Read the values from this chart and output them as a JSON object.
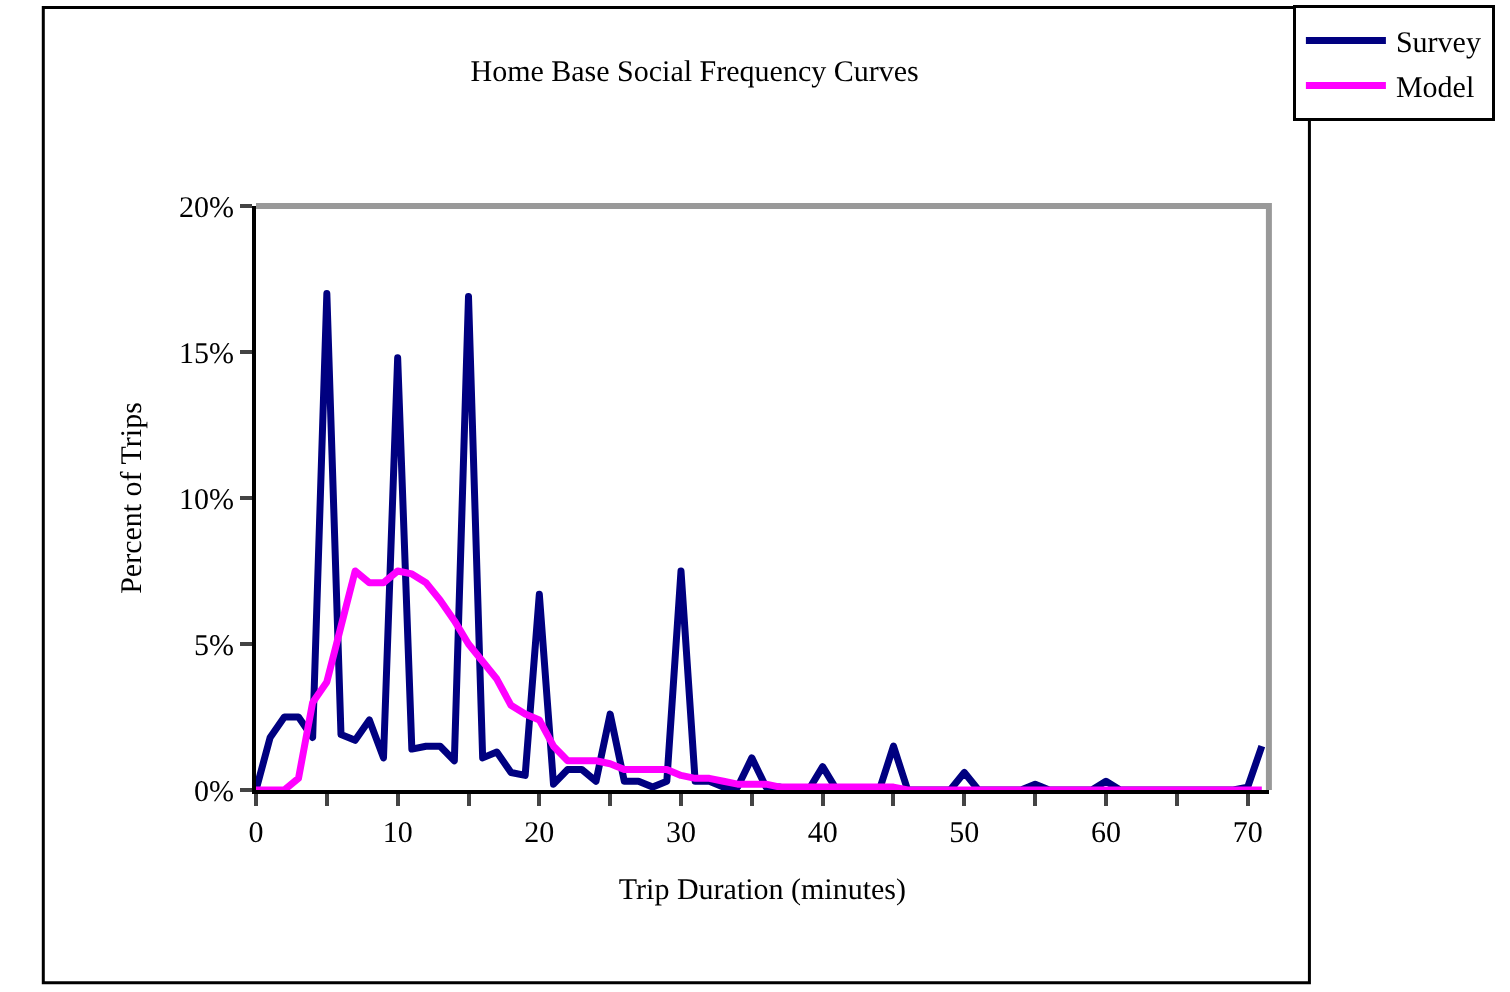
{
  "chart_data": {
    "type": "line",
    "title": "Home Base Social Frequency Curves",
    "xlabel": "Trip Duration (minutes)",
    "ylabel": "Percent of Trips",
    "x": [
      0,
      1,
      2,
      3,
      4,
      5,
      6,
      7,
      8,
      9,
      10,
      11,
      12,
      13,
      14,
      15,
      16,
      17,
      18,
      19,
      20,
      21,
      22,
      23,
      24,
      25,
      26,
      27,
      28,
      29,
      30,
      31,
      32,
      33,
      34,
      35,
      36,
      37,
      38,
      39,
      40,
      41,
      42,
      43,
      44,
      45,
      46,
      47,
      48,
      49,
      50,
      51,
      52,
      53,
      54,
      55,
      56,
      57,
      58,
      59,
      60,
      61,
      62,
      63,
      64,
      65,
      66,
      67,
      68,
      69,
      70,
      71
    ],
    "series": [
      {
        "name": "Survey",
        "color": "#000080",
        "values": [
          0,
          1.8,
          2.5,
          2.5,
          1.8,
          17,
          1.9,
          1.7,
          2.4,
          1.1,
          14.8,
          1.4,
          1.5,
          1.5,
          1.0,
          16.9,
          1.1,
          1.3,
          0.6,
          0.5,
          6.7,
          0.2,
          0.7,
          0.7,
          0.3,
          2.6,
          0.3,
          0.3,
          0.1,
          0.3,
          7.5,
          0.3,
          0.3,
          0.1,
          0.1,
          1.1,
          0.1,
          0.1,
          0,
          0,
          0.8,
          0,
          0,
          0,
          0,
          1.5,
          0,
          0,
          0,
          0,
          0.6,
          0,
          0,
          0,
          0,
          0.2,
          0,
          0,
          0,
          0,
          0.3,
          0,
          0,
          0,
          0,
          0,
          0,
          0,
          0,
          0,
          0.1,
          1.5
        ]
      },
      {
        "name": "Model",
        "color": "#ff00ff",
        "values": [
          0,
          0,
          0,
          0.4,
          3.0,
          3.7,
          5.6,
          7.5,
          7.1,
          7.1,
          7.5,
          7.4,
          7.1,
          6.5,
          5.8,
          5.0,
          4.4,
          3.8,
          2.9,
          2.6,
          2.4,
          1.5,
          1.0,
          1.0,
          1.0,
          0.9,
          0.7,
          0.7,
          0.7,
          0.7,
          0.5,
          0.4,
          0.4,
          0.3,
          0.2,
          0.2,
          0.2,
          0.1,
          0.1,
          0.1,
          0.1,
          0.1,
          0.1,
          0.1,
          0.1,
          0.1,
          0,
          0,
          0,
          0,
          0,
          0,
          0,
          0,
          0,
          0,
          0,
          0,
          0,
          0,
          0,
          0,
          0,
          0,
          0,
          0,
          0,
          0,
          0,
          0,
          0,
          0
        ]
      }
    ],
    "xlim": [
      0,
      71.5
    ],
    "xticks": [
      0,
      {
        "value": 5,
        "label": null
      },
      10,
      {
        "value": 15,
        "label": null
      },
      20,
      {
        "value": 25,
        "label": null
      },
      30,
      {
        "value": 35,
        "label": null
      },
      40,
      {
        "value": 45,
        "label": null
      },
      50,
      {
        "value": 55,
        "label": null
      },
      60,
      {
        "value": 65,
        "label": null
      },
      70
    ],
    "ylim": [
      0,
      20
    ],
    "yticks": [
      {
        "value": 0,
        "label": "0%"
      },
      {
        "value": 5,
        "label": "5%"
      },
      {
        "value": 10,
        "label": "10%"
      },
      {
        "value": 15,
        "label": "15%"
      },
      {
        "value": 20,
        "label": "20%"
      }
    ],
    "grid": false,
    "legend": "top right",
    "marker": "none",
    "line_style": "solid"
  }
}
